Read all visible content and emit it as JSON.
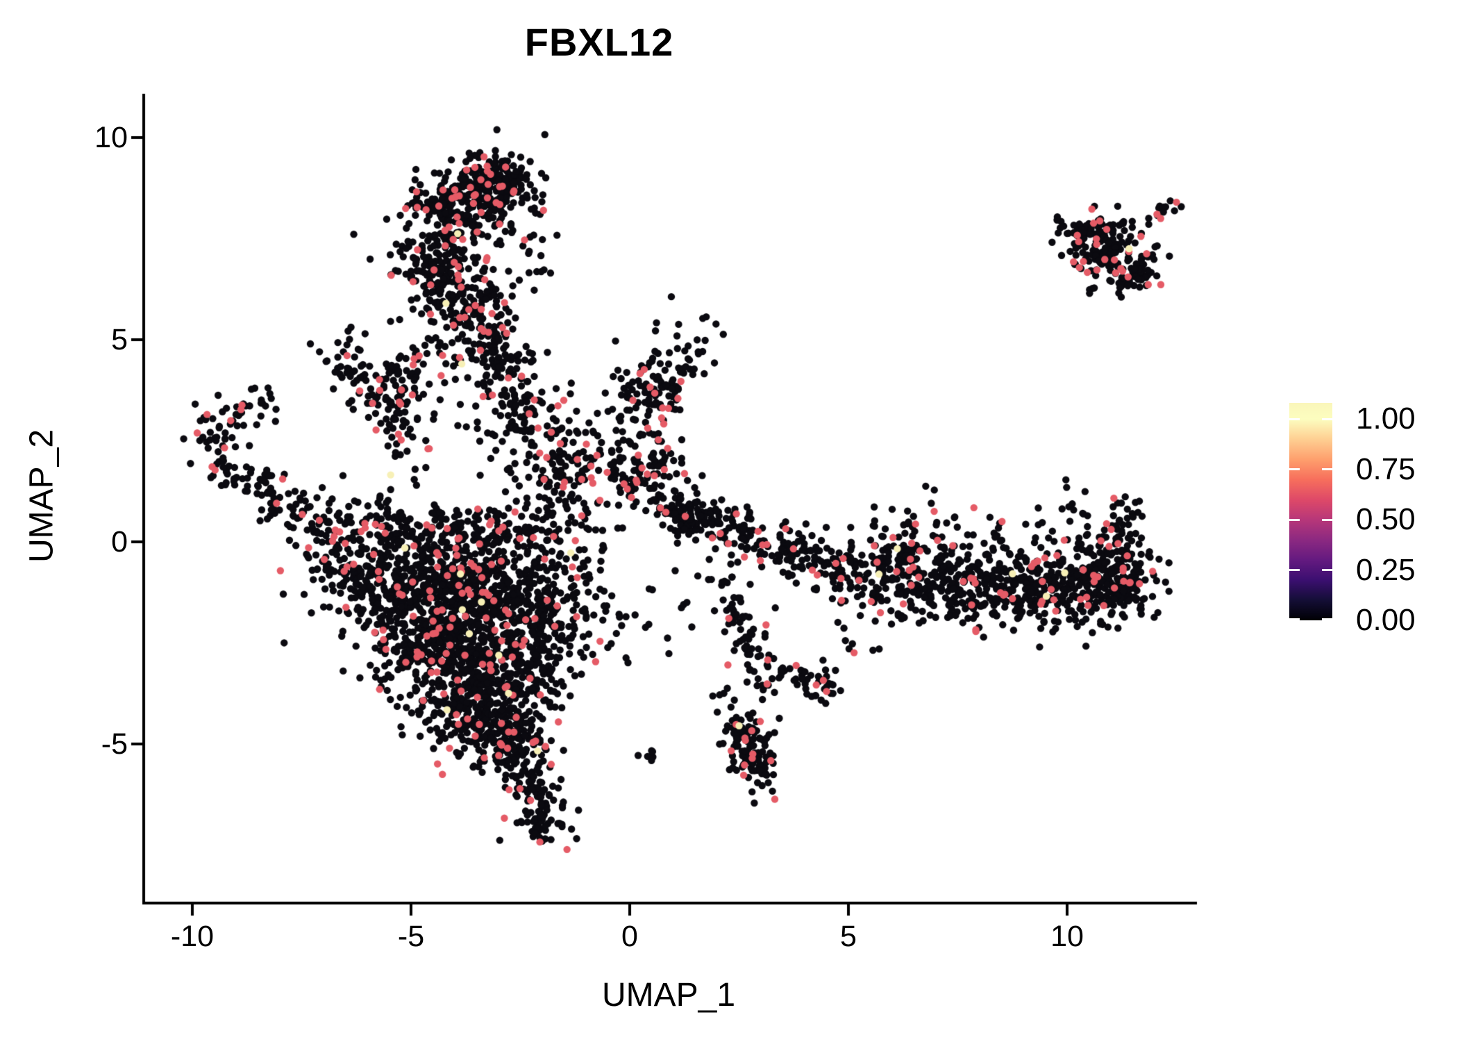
{
  "chart_data": {
    "type": "scatter",
    "title": "FBXL12",
    "xlabel": "UMAP_1",
    "ylabel": "UMAP_2",
    "x_ticks": [
      -10,
      -5,
      0,
      5,
      10
    ],
    "y_ticks": [
      10,
      5,
      0,
      -5
    ],
    "xlim": [
      -11.1,
      12.9
    ],
    "ylim": [
      -8.9,
      11.0
    ],
    "grid": false,
    "background": "#FFFFFF",
    "axis_color": "#000000",
    "legend_position": "right",
    "point": {
      "radius_px": 5.2,
      "frac_mid": 0.078,
      "frac_high": 0.004,
      "color_zero": "#0b0a10",
      "color_mid": "#E55B66",
      "color_high": "#F7F0B6"
    },
    "colorbar": {
      "ticks": [
        "1.00",
        "0.75",
        "0.50",
        "0.25",
        "0.00"
      ],
      "tick_values": [
        1.0,
        0.75,
        0.5,
        0.25,
        0.0
      ],
      "vmax": 1.081,
      "palette": "magma",
      "stops": [
        "#000004",
        "#140E36",
        "#3B0F70",
        "#641A80",
        "#8C2981",
        "#B73779",
        "#DE4968",
        "#F76F5C",
        "#FE9F6D",
        "#FECF92",
        "#FCFDBF"
      ]
    },
    "clusters": [
      {
        "name": "top-blob-dense",
        "t": "g",
        "x": -3.15,
        "y": 8.85,
        "sx": 0.5,
        "sy": 0.42,
        "n": 230
      },
      {
        "name": "top-blob-left",
        "t": "g",
        "x": -4.0,
        "y": 8.1,
        "sx": 0.55,
        "sy": 0.5,
        "n": 170
      },
      {
        "name": "top-stem",
        "t": "p",
        "pts": [
          [
            -4.6,
            7.4
          ],
          [
            -4.1,
            6.3
          ],
          [
            -3.6,
            5.4
          ]
        ],
        "w": 0.5,
        "n": 270
      },
      {
        "name": "top-stem-lower",
        "t": "p",
        "pts": [
          [
            -3.5,
            5.2
          ],
          [
            -2.9,
            4.3
          ]
        ],
        "w": 0.45,
        "n": 110
      },
      {
        "name": "top-right-sparse",
        "t": "g",
        "x": -2.3,
        "y": 7.3,
        "sx": 0.35,
        "sy": 0.8,
        "n": 22
      },
      {
        "name": "v-cluster-left",
        "t": "p",
        "pts": [
          [
            -6.6,
            4.9
          ],
          [
            -6.1,
            3.9
          ],
          [
            -5.5,
            3.4
          ]
        ],
        "w": 0.3,
        "n": 70
      },
      {
        "name": "v-cluster-right",
        "t": "p",
        "pts": [
          [
            -5.5,
            3.4
          ],
          [
            -5.0,
            4.4
          ]
        ],
        "w": 0.25,
        "n": 45
      },
      {
        "name": "v-cluster-tail",
        "t": "p",
        "pts": [
          [
            -5.6,
            3.3
          ],
          [
            -5.3,
            2.5
          ]
        ],
        "w": 0.25,
        "n": 25
      },
      {
        "name": "left-hook",
        "t": "p",
        "pts": [
          [
            -8.3,
            3.6
          ],
          [
            -9.3,
            3.2
          ],
          [
            -9.6,
            2.4
          ],
          [
            -9.2,
            1.8
          ],
          [
            -8.6,
            1.6
          ]
        ],
        "w": 0.28,
        "n": 95
      },
      {
        "name": "left-hook-chain",
        "t": "p",
        "pts": [
          [
            -8.4,
            1.4
          ],
          [
            -7.6,
            0.8
          ],
          [
            -6.9,
            0.3
          ]
        ],
        "w": 0.3,
        "n": 75
      },
      {
        "name": "mid-column",
        "t": "p",
        "pts": [
          [
            -2.8,
            4.0
          ],
          [
            -2.3,
            2.6
          ],
          [
            -1.8,
            1.6
          ]
        ],
        "w": 0.5,
        "n": 140
      },
      {
        "name": "junction",
        "t": "g",
        "x": -1.1,
        "y": 1.9,
        "sx": 0.75,
        "sy": 0.8,
        "n": 130
      },
      {
        "name": "center-blob-upper",
        "t": "g",
        "x": 0.4,
        "y": 3.7,
        "sx": 0.5,
        "sy": 0.55,
        "n": 90
      },
      {
        "name": "center-blob-lower",
        "t": "g",
        "x": 0.45,
        "y": 1.8,
        "sx": 0.5,
        "sy": 0.55,
        "n": 100
      },
      {
        "name": "center-sparse",
        "t": "g",
        "x": 1.2,
        "y": 4.8,
        "sx": 0.45,
        "sy": 0.7,
        "n": 18
      },
      {
        "name": "triangle-top-edge",
        "t": "p",
        "pts": [
          [
            -6.7,
            0.15
          ],
          [
            -5.0,
            0.35
          ],
          [
            -3.2,
            0.3
          ],
          [
            -1.6,
            0.55
          ]
        ],
        "w": 0.38,
        "n": 230
      },
      {
        "name": "triangle-1",
        "t": "g",
        "x": -4.9,
        "y": -1.0,
        "sx": 1.05,
        "sy": 0.6,
        "n": 330
      },
      {
        "name": "triangle-2",
        "t": "g",
        "x": -3.4,
        "y": -1.4,
        "sx": 1.0,
        "sy": 0.7,
        "n": 380
      },
      {
        "name": "triangle-3",
        "t": "g",
        "x": -4.1,
        "y": -2.6,
        "sx": 0.95,
        "sy": 0.75,
        "n": 340
      },
      {
        "name": "triangle-4",
        "t": "g",
        "x": -3.0,
        "y": -3.3,
        "sx": 0.75,
        "sy": 0.65,
        "n": 260
      },
      {
        "name": "triangle-5",
        "t": "g",
        "x": -3.7,
        "y": -4.3,
        "sx": 0.55,
        "sy": 0.45,
        "n": 150
      },
      {
        "name": "triangle-6",
        "t": "g",
        "x": -2.7,
        "y": -4.9,
        "sx": 0.5,
        "sy": 0.45,
        "n": 130
      },
      {
        "name": "triangle-tail",
        "t": "p",
        "pts": [
          [
            -2.45,
            -5.4
          ],
          [
            -2.2,
            -6.3
          ],
          [
            -1.95,
            -7.3
          ]
        ],
        "w": 0.33,
        "n": 120
      },
      {
        "name": "triangle-right-edge",
        "t": "p",
        "pts": [
          [
            -1.5,
            0.2
          ],
          [
            -1.9,
            -1.6
          ],
          [
            -2.3,
            -3.6
          ]
        ],
        "w": 0.45,
        "n": 160
      },
      {
        "name": "triangle-left-edge",
        "t": "p",
        "pts": [
          [
            -6.9,
            -0.2
          ],
          [
            -5.6,
            -1.6
          ],
          [
            -4.6,
            -3.0
          ]
        ],
        "w": 0.4,
        "n": 150
      },
      {
        "name": "triangle-right-sparse",
        "t": "g",
        "x": -0.9,
        "y": -1.8,
        "sx": 0.5,
        "sy": 0.9,
        "n": 30
      },
      {
        "name": "right-chain-1",
        "t": "p",
        "pts": [
          [
            1.0,
            0.75
          ],
          [
            2.0,
            0.45
          ],
          [
            2.9,
            0.0
          ]
        ],
        "w": 0.28,
        "n": 120
      },
      {
        "name": "right-chain-start",
        "t": "g",
        "x": 1.3,
        "y": 0.6,
        "sx": 0.3,
        "sy": 0.25,
        "n": 50
      },
      {
        "name": "right-chain-2",
        "t": "p",
        "pts": [
          [
            3.0,
            -0.05
          ],
          [
            4.2,
            -0.5
          ],
          [
            5.2,
            -0.9
          ]
        ],
        "w": 0.3,
        "n": 130
      },
      {
        "name": "right-mass-1",
        "t": "g",
        "x": 6.1,
        "y": -0.85,
        "sx": 0.65,
        "sy": 0.5,
        "n": 170
      },
      {
        "name": "right-mass-2",
        "t": "g",
        "x": 7.5,
        "y": -1.1,
        "sx": 0.75,
        "sy": 0.5,
        "n": 180
      },
      {
        "name": "right-mass-3",
        "t": "g",
        "x": 9.0,
        "y": -1.15,
        "sx": 0.8,
        "sy": 0.5,
        "n": 190
      },
      {
        "name": "right-mass-4",
        "t": "g",
        "x": 10.4,
        "y": -1.05,
        "sx": 0.65,
        "sy": 0.5,
        "n": 180
      },
      {
        "name": "right-mass-5",
        "t": "g",
        "x": 11.25,
        "y": -0.8,
        "sx": 0.4,
        "sy": 0.55,
        "n": 130
      },
      {
        "name": "right-up-tail",
        "t": "p",
        "pts": [
          [
            11.1,
            -0.2
          ],
          [
            11.35,
            0.9
          ]
        ],
        "w": 0.22,
        "n": 35
      },
      {
        "name": "right-above-sparse",
        "t": "g",
        "x": 6.9,
        "y": 0.3,
        "sx": 0.7,
        "sy": 0.55,
        "n": 35
      },
      {
        "name": "right-above-2",
        "t": "g",
        "x": 10.3,
        "y": 0.6,
        "sx": 0.25,
        "sy": 0.45,
        "n": 15
      },
      {
        "name": "down-branch",
        "t": "p",
        "pts": [
          [
            2.0,
            -0.7
          ],
          [
            2.5,
            -1.8
          ],
          [
            2.9,
            -2.9
          ],
          [
            3.2,
            -3.6
          ]
        ],
        "w": 0.25,
        "n": 80
      },
      {
        "name": "down-hook",
        "t": "p",
        "pts": [
          [
            3.4,
            -3.3
          ],
          [
            4.0,
            -3.3
          ],
          [
            4.5,
            -3.7
          ]
        ],
        "w": 0.22,
        "n": 45
      },
      {
        "name": "bottom-island",
        "t": "p",
        "pts": [
          [
            2.4,
            -4.35
          ],
          [
            2.75,
            -5.1
          ],
          [
            3.05,
            -5.85
          ]
        ],
        "w": 0.26,
        "n": 130
      },
      {
        "name": "tiny-pair",
        "t": "g",
        "x": 0.45,
        "y": -5.25,
        "sx": 0.12,
        "sy": 0.1,
        "n": 6
      },
      {
        "name": "iso-pair",
        "t": "g",
        "x": 2.05,
        "y": -3.75,
        "sx": 0.12,
        "sy": 0.08,
        "n": 4
      },
      {
        "name": "island-top-edge",
        "t": "p",
        "pts": [
          [
            9.85,
            7.75
          ],
          [
            10.6,
            7.7
          ],
          [
            11.1,
            7.75
          ]
        ],
        "w": 0.18,
        "n": 40
      },
      {
        "name": "island-mass",
        "t": "g",
        "x": 10.95,
        "y": 7.1,
        "sx": 0.5,
        "sy": 0.42,
        "n": 150
      },
      {
        "name": "island-tip",
        "t": "p",
        "pts": [
          [
            11.4,
            6.7
          ],
          [
            11.75,
            6.35
          ]
        ],
        "w": 0.2,
        "n": 35
      },
      {
        "name": "island-antenna",
        "t": "p",
        "pts": [
          [
            11.95,
            8.0
          ],
          [
            12.45,
            8.35
          ]
        ],
        "w": 0.12,
        "n": 14
      },
      {
        "name": "sparse-center-low",
        "t": "b",
        "x0": -1.5,
        "x1": 1.5,
        "y0": -3.5,
        "y1": -0.5,
        "n": 22
      },
      {
        "name": "sparse-center-high",
        "t": "b",
        "x0": 0.5,
        "x1": 2.0,
        "y0": 3.5,
        "y1": 6.0,
        "n": 12
      },
      {
        "name": "sparse-right-low",
        "t": "b",
        "x0": 4.5,
        "x1": 6.0,
        "y0": -2.8,
        "y1": -1.8,
        "n": 10
      },
      {
        "name": "sparse-left-mid",
        "t": "b",
        "x0": -6.5,
        "x1": -4.5,
        "y0": 1.0,
        "y1": 2.8,
        "n": 16
      },
      {
        "name": "sparse-stem-left",
        "t": "b",
        "x0": -5.2,
        "x1": -3.8,
        "y0": 2.8,
        "y1": 5.0,
        "n": 20
      },
      {
        "name": "sparse-right-up",
        "t": "b",
        "x0": 8.0,
        "x1": 9.5,
        "y0": 0.3,
        "y1": 1.2,
        "n": 6
      }
    ],
    "accent_points": [
      {
        "x": 12.5,
        "y": 8.4,
        "v": "mid"
      },
      {
        "x": 4.5,
        "y": -3.7,
        "v": "mid"
      },
      {
        "x": 2.5,
        "y": -4.55,
        "v": "high"
      },
      {
        "x": -4.2,
        "y": 5.9,
        "v": "high"
      },
      {
        "x": 5.7,
        "y": -0.8,
        "v": "high"
      }
    ]
  }
}
